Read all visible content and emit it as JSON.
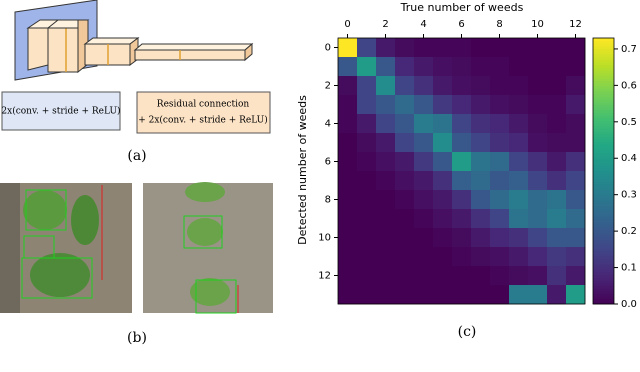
{
  "panels": {
    "a": {
      "label": "(a)",
      "legend_left": "2x(conv. + stride + ReLU)",
      "legend_right": [
        "Residual connection",
        "+ 2x(conv. + stride + ReLU)"
      ]
    },
    "b": {
      "label": "(b)"
    },
    "c": {
      "label": "(c)"
    }
  },
  "chart_data": {
    "type": "heatmap",
    "xlabel": "True number of weeds",
    "ylabel": "Detected number of weeds",
    "xlim": [
      -0.5,
      12.5
    ],
    "xticks": [
      0,
      2,
      4,
      6,
      8,
      10,
      12
    ],
    "ylim": [
      -0.5,
      13.5
    ],
    "yticks": [
      0,
      2,
      4,
      6,
      8,
      10,
      12
    ],
    "y_inverted": true,
    "colormap": "viridis",
    "clim": [
      0,
      0.73
    ],
    "cticks": [
      {
        "value": 0,
        "label": "0.0"
      },
      0.1,
      0.2,
      0.3,
      0.4,
      0.5,
      0.6,
      0.7
    ],
    "values": [
      [
        0.75,
        0.15,
        0.05,
        0.02,
        0.01,
        0.01,
        0.01,
        0,
        0,
        0,
        0,
        0,
        0
      ],
      [
        0.2,
        0.4,
        0.2,
        0.08,
        0.05,
        0.03,
        0.02,
        0.01,
        0.01,
        0,
        0,
        0,
        0
      ],
      [
        0.02,
        0.15,
        0.35,
        0.15,
        0.1,
        0.05,
        0.03,
        0.02,
        0.01,
        0.01,
        0,
        0,
        0.02
      ],
      [
        0.01,
        0.15,
        0.2,
        0.25,
        0.2,
        0.12,
        0.08,
        0.05,
        0.03,
        0.02,
        0.01,
        0.01,
        0.05
      ],
      [
        0.01,
        0.05,
        0.15,
        0.2,
        0.3,
        0.28,
        0.15,
        0.1,
        0.08,
        0.05,
        0.02,
        0.01,
        0.02
      ],
      [
        0,
        0.02,
        0.05,
        0.15,
        0.2,
        0.35,
        0.2,
        0.15,
        0.1,
        0.08,
        0.03,
        0.02,
        0.02
      ],
      [
        0,
        0.01,
        0.03,
        0.05,
        0.12,
        0.2,
        0.4,
        0.28,
        0.25,
        0.15,
        0.1,
        0.05,
        0.1
      ],
      [
        0,
        0,
        0.01,
        0.03,
        0.05,
        0.1,
        0.22,
        0.25,
        0.2,
        0.22,
        0.15,
        0.1,
        0.15
      ],
      [
        0,
        0,
        0,
        0.01,
        0.03,
        0.05,
        0.1,
        0.2,
        0.25,
        0.3,
        0.25,
        0.28,
        0.2
      ],
      [
        0,
        0,
        0,
        0,
        0.01,
        0.03,
        0.05,
        0.1,
        0.15,
        0.28,
        0.25,
        0.3,
        0.25
      ],
      [
        0,
        0,
        0,
        0,
        0,
        0.01,
        0.02,
        0.05,
        0.08,
        0.1,
        0.15,
        0.2,
        0.2
      ],
      [
        0,
        0,
        0,
        0,
        0,
        0,
        0.01,
        0.02,
        0.03,
        0.05,
        0.08,
        0.12,
        0.1
      ],
      [
        0,
        0,
        0,
        0,
        0,
        0,
        0,
        0,
        0.01,
        0.02,
        0.03,
        0.1,
        0.05
      ],
      [
        0,
        0,
        0,
        0,
        0,
        0,
        0,
        0,
        0,
        0.3,
        0.3,
        0.05,
        0.4
      ]
    ]
  }
}
